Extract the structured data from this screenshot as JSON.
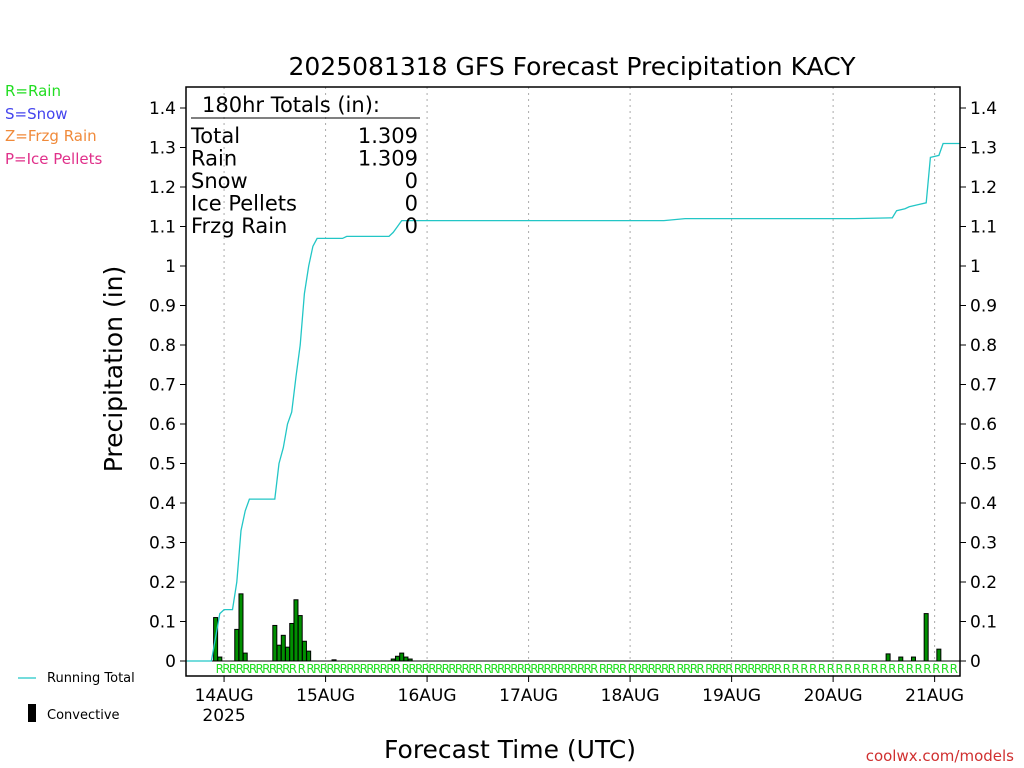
{
  "chart_data": {
    "type": "bar",
    "title": "2025081318 GFS Forecast Precipitation KACY",
    "xlabel": "Forecast Time (UTC)",
    "ylabel": "Precipitation (in)",
    "ylim": [
      0,
      1.4
    ],
    "y_ticks": [
      "0",
      "0.1",
      "0.2",
      "0.3",
      "0.4",
      "0.5",
      "0.6",
      "0.7",
      "0.8",
      "0.9",
      "1",
      "1.1",
      "1.2",
      "1.3",
      "1.4"
    ],
    "x_range_hours": [
      -3,
      180
    ],
    "x_ticks": [
      {
        "hour": 6,
        "label": "14AUG"
      },
      {
        "hour": 30,
        "label": "15AUG"
      },
      {
        "hour": 54,
        "label": "16AUG"
      },
      {
        "hour": 78,
        "label": "17AUG"
      },
      {
        "hour": 102,
        "label": "18AUG"
      },
      {
        "hour": 126,
        "label": "19AUG"
      },
      {
        "hour": 150,
        "label": "20AUG"
      },
      {
        "hour": 174,
        "label": "21AUG"
      }
    ],
    "year_label": "2025",
    "totals_box": {
      "header": "180hr Totals (in):",
      "rows": [
        {
          "label": "Total",
          "value": "1.309"
        },
        {
          "label": "Rain",
          "value": "1.309"
        },
        {
          "label": "Snow",
          "value": "0"
        },
        {
          "label": "Ice Pellets",
          "value": "0"
        },
        {
          "label": "Frzg Rain",
          "value": "0"
        }
      ]
    },
    "series": [
      {
        "name": "Running Total",
        "color": "#22c6c6",
        "points": [
          [
            -3,
            0
          ],
          [
            3,
            0
          ],
          [
            4,
            0.06
          ],
          [
            5,
            0.12
          ],
          [
            6,
            0.13
          ],
          [
            8,
            0.13
          ],
          [
            9,
            0.2
          ],
          [
            10,
            0.33
          ],
          [
            11,
            0.38
          ],
          [
            12,
            0.41
          ],
          [
            17,
            0.41
          ],
          [
            18,
            0.41
          ],
          [
            19,
            0.5
          ],
          [
            20,
            0.54
          ],
          [
            21,
            0.6
          ],
          [
            22,
            0.63
          ],
          [
            23,
            0.72
          ],
          [
            24,
            0.8
          ],
          [
            25,
            0.93
          ],
          [
            26,
            1.0
          ],
          [
            27,
            1.05
          ],
          [
            28,
            1.07
          ],
          [
            34,
            1.07
          ],
          [
            35,
            1.075
          ],
          [
            45,
            1.075
          ],
          [
            46,
            1.085
          ],
          [
            47,
            1.1
          ],
          [
            48,
            1.115
          ],
          [
            60,
            1.115
          ],
          [
            110,
            1.115
          ],
          [
            115,
            1.12
          ],
          [
            155,
            1.12
          ],
          [
            164,
            1.122
          ],
          [
            165,
            1.14
          ],
          [
            167,
            1.145
          ],
          [
            168,
            1.15
          ],
          [
            170,
            1.155
          ],
          [
            172,
            1.16
          ],
          [
            173,
            1.275
          ],
          [
            175,
            1.28
          ],
          [
            176,
            1.31
          ],
          [
            180,
            1.31
          ]
        ]
      },
      {
        "name": "Convective",
        "color": "#000000",
        "bar_color": "#009000",
        "bars": [
          [
            4,
            0.11
          ],
          [
            5,
            0.01
          ],
          [
            9,
            0.08
          ],
          [
            10,
            0.17
          ],
          [
            11,
            0.02
          ],
          [
            18,
            0.09
          ],
          [
            19,
            0.04
          ],
          [
            20,
            0.065
          ],
          [
            21,
            0.035
          ],
          [
            22,
            0.095
          ],
          [
            23,
            0.155
          ],
          [
            24,
            0.115
          ],
          [
            25,
            0.05
          ],
          [
            26,
            0.025
          ],
          [
            32,
            0.003
          ],
          [
            46,
            0.005
          ],
          [
            47,
            0.012
          ],
          [
            48,
            0.02
          ],
          [
            49,
            0.01
          ],
          [
            50,
            0.005
          ],
          [
            163,
            0.018
          ],
          [
            166,
            0.01
          ],
          [
            169,
            0.01
          ],
          [
            172,
            0.12
          ],
          [
            175,
            0.03
          ]
        ]
      }
    ],
    "precip_type_codes": "RRRRRRRRRRRR R RRRRRRRRRRRRRR  RRRRRRRRRRRR RRRRRRRRRRRRRRRRR RRRR RRRRRRR RRRR RRRR RRRRRRR R R R R R R R R R R  R R R R R R R R R R",
    "legend_lines": [
      {
        "label": "Running Total",
        "color": "#22c6c6",
        "shape": "line"
      },
      {
        "label": "Convective",
        "color": "#000000",
        "shape": "bar"
      }
    ]
  },
  "type_legend": [
    {
      "label": "R=Rain",
      "color": "#22dd22"
    },
    {
      "label": "S=Snow",
      "color": "#4444ee"
    },
    {
      "label": "Z=Frzg Rain",
      "color": "#f08a3a"
    },
    {
      "label": "P=Ice Pellets",
      "color": "#e0308a"
    }
  ],
  "credit": "coolwx.com/models"
}
